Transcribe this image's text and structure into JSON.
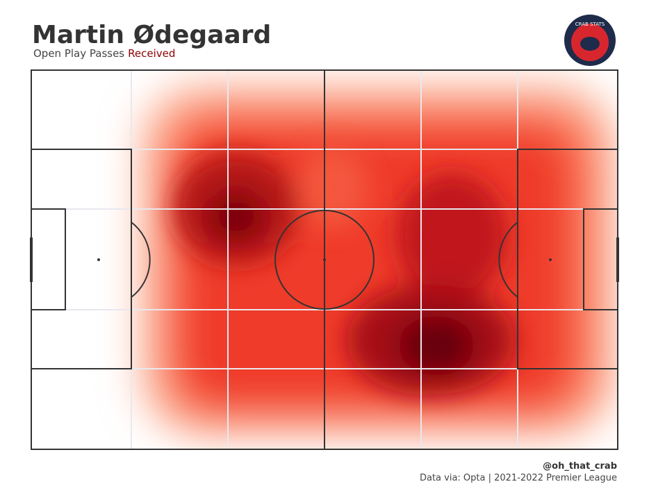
{
  "header": {
    "title": "Martin Ødegaard",
    "subtitle": "Open Play Passes",
    "subtitle_highlight": "Received"
  },
  "logo": {
    "text": "CRAB STATS"
  },
  "footer": {
    "credit": "@oh_that_crab",
    "source": "Data via: Opta | 2021-2022 Premier League"
  }
}
